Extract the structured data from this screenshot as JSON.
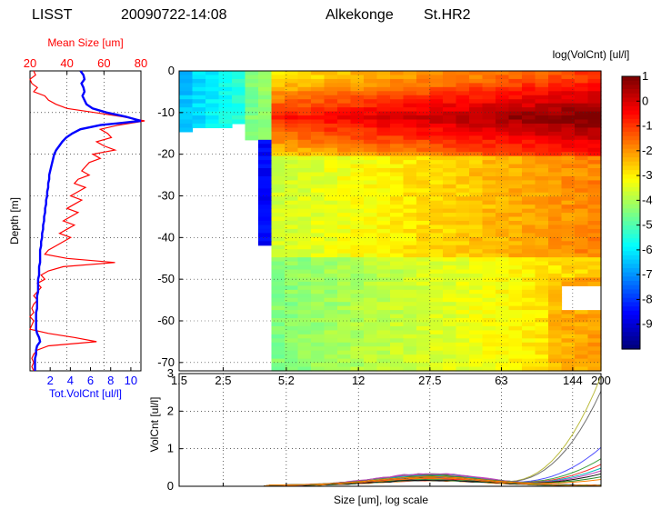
{
  "header": {
    "instrument": "LISST",
    "datetime": "20090722-14:08",
    "location": "Alkekonge",
    "station": "St.HR2"
  },
  "chart_data": [
    {
      "id": "profile",
      "type": "line",
      "ylabel": "Depth   [m]",
      "ylim": [
        -72,
        0
      ],
      "yticks": [
        0,
        -10,
        -20,
        -30,
        -40,
        -50,
        -60,
        -70
      ],
      "top_axis": {
        "label": "Mean Size [um]",
        "xlim": [
          20,
          80
        ],
        "ticks": [
          20,
          40,
          60,
          80
        ],
        "color": "#ff0000"
      },
      "bottom_axis": {
        "label": "Tot.VolCnt [ul/l]",
        "xlim": [
          0,
          11
        ],
        "ticks": [
          2,
          4,
          6,
          8,
          10
        ],
        "color": "#0000ff"
      },
      "series": [
        {
          "axis": "top",
          "color": "#ff0000",
          "depth": [
            0,
            -1,
            -2,
            -3,
            -4,
            -5,
            -6,
            -7,
            -8,
            -9,
            -10,
            -11,
            -12,
            -13,
            -14,
            -15,
            -16,
            -17,
            -18,
            -19,
            -20,
            -21,
            -22,
            -23,
            -24,
            -25,
            -26,
            -27,
            -28,
            -29,
            -30,
            -31,
            -32,
            -33,
            -34,
            -35,
            -36,
            -37,
            -38,
            -39,
            -40,
            -41,
            -42,
            -43,
            -44,
            -45,
            -46,
            -47,
            -48,
            -49,
            -50,
            -51,
            -52,
            -53,
            -54,
            -55,
            -56,
            -57,
            -58,
            -59,
            -60,
            -61,
            -62,
            -63,
            -64,
            -65,
            -66,
            -67,
            -68,
            -69,
            -70,
            -71,
            -72
          ],
          "values": [
            22,
            23,
            20,
            21,
            24,
            22,
            28,
            30,
            34,
            40,
            55,
            70,
            82,
            68,
            58,
            62,
            64,
            56,
            60,
            66,
            54,
            58,
            52,
            50,
            48,
            52,
            46,
            44,
            50,
            46,
            42,
            48,
            44,
            40,
            46,
            42,
            38,
            44,
            40,
            36,
            42,
            38,
            34,
            30,
            28,
            40,
            66,
            38,
            30,
            26,
            28,
            24,
            26,
            24,
            22,
            24,
            22,
            21,
            22,
            20,
            22,
            21,
            20,
            30,
            44,
            56,
            30,
            24,
            22,
            21,
            22,
            21,
            22
          ]
        },
        {
          "axis": "bottom",
          "color": "#0000ff",
          "depth": [
            0,
            -1,
            -2,
            -3,
            -4,
            -5,
            -6,
            -7,
            -8,
            -9,
            -10,
            -11,
            -12,
            -13,
            -14,
            -15,
            -16,
            -17,
            -18,
            -19,
            -20,
            -21,
            -22,
            -23,
            -24,
            -25,
            -26,
            -27,
            -28,
            -29,
            -30,
            -31,
            -32,
            -33,
            -34,
            -35,
            -36,
            -37,
            -38,
            -39,
            -40,
            -41,
            -42,
            -43,
            -44,
            -45,
            -46,
            -47,
            -48,
            -49,
            -50,
            -51,
            -52,
            -53,
            -54,
            -55,
            -56,
            -57,
            -58,
            -59,
            -60,
            -61,
            -62,
            -63,
            -64,
            -65,
            -66,
            -67,
            -68,
            -69,
            -70,
            -71,
            -72
          ],
          "values": [
            5.0,
            5.3,
            5.4,
            5.1,
            5.3,
            5.4,
            5.2,
            5.4,
            5.6,
            6.2,
            7.6,
            9.5,
            11.0,
            7.0,
            5.0,
            4.2,
            3.6,
            3.2,
            2.9,
            2.6,
            2.4,
            2.3,
            2.2,
            2.1,
            2.0,
            1.9,
            1.9,
            1.8,
            1.8,
            1.7,
            1.7,
            1.6,
            1.6,
            1.5,
            1.5,
            1.4,
            1.4,
            1.3,
            1.3,
            1.2,
            1.2,
            1.1,
            1.1,
            1.0,
            1.0,
            1.0,
            1.0,
            0.9,
            0.9,
            0.9,
            0.8,
            0.8,
            0.8,
            0.8,
            0.7,
            0.7,
            0.7,
            0.7,
            0.6,
            0.6,
            0.6,
            0.6,
            0.6,
            0.7,
            0.9,
            1.0,
            0.7,
            0.6,
            0.6,
            0.5,
            0.5,
            0.5,
            0.5
          ]
        }
      ]
    },
    {
      "id": "heatmap",
      "type": "heatmap",
      "x_scale": "log",
      "xlim": [
        1.5,
        200
      ],
      "xtick_labels": [
        "1.5",
        "2.5",
        "5.2",
        "12",
        "27.5",
        "63",
        "144",
        "200"
      ],
      "xticks": [
        1.5,
        2.5,
        5.2,
        12,
        27.5,
        63,
        144,
        200
      ],
      "ylim": [
        -72,
        0
      ],
      "yticks": [
        0,
        -10,
        -20,
        -30,
        -40,
        -50,
        -60,
        -70
      ],
      "colorbar": {
        "label": "log(VolCnt)   [ul/l]",
        "range": [
          -10,
          1
        ],
        "ticks": [
          1,
          0,
          -1,
          -2,
          -3,
          -4,
          -5,
          -6,
          -7,
          -8,
          -9
        ]
      }
    },
    {
      "id": "spectra",
      "type": "line",
      "x_scale": "log",
      "xlim": [
        1.5,
        200
      ],
      "ylim": [
        0,
        3
      ],
      "yticks": [
        0,
        1,
        2,
        3
      ],
      "ylabel": "VolCnt   [ul/l]",
      "xlabel": "Size [um],    log scale",
      "peak_curves": [
        {
          "color": "#bcbc40",
          "end_value": 2.9
        },
        {
          "color": "#707070",
          "end_value": 2.5
        },
        {
          "color": "#5050ff",
          "end_value": 1.0
        },
        {
          "color": "#40a040",
          "end_value": 0.7
        },
        {
          "color": "#ff3030",
          "end_value": 0.55
        },
        {
          "color": "#00bcbc",
          "end_value": 0.45
        },
        {
          "color": "#bc40bc",
          "end_value": 0.38
        },
        {
          "color": "#101010",
          "end_value": 0.3
        },
        {
          "color": "#2a8a2a",
          "end_value": 0.22
        },
        {
          "color": "#ff8000",
          "end_value": 0.15
        }
      ]
    }
  ]
}
